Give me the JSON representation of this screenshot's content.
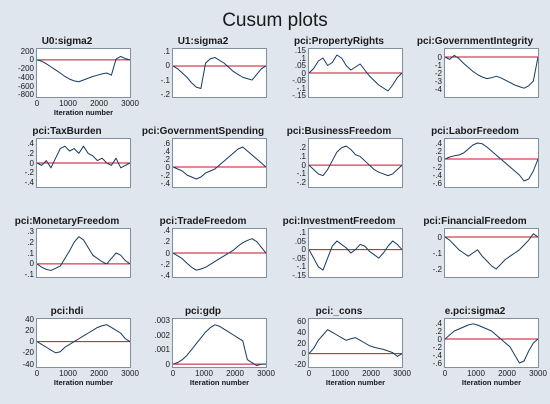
{
  "title": "Cusum plots",
  "colors": {
    "series": "#1a3a5c",
    "zero_line": "#c8102e",
    "background": "#dfe6ee",
    "plot_bg": "#ffffff"
  },
  "chart_data": [
    {
      "type": "line",
      "title": "U0:sigma2",
      "xlabel": "Iteration number",
      "xlim": [
        0,
        3000
      ],
      "ylim": [
        -850,
        250
      ],
      "xticks": [
        0,
        1000,
        2000,
        3000
      ],
      "yticks": [
        200,
        0,
        -200,
        -400,
        -600,
        -800
      ],
      "zero_line": true,
      "x": [
        0,
        150,
        300,
        450,
        600,
        750,
        900,
        1050,
        1200,
        1350,
        1500,
        1650,
        1800,
        1950,
        2100,
        2250,
        2400,
        2550,
        2700,
        2850,
        3000
      ],
      "y": [
        0,
        -30,
        -90,
        -160,
        -230,
        -300,
        -380,
        -440,
        -480,
        -500,
        -460,
        -420,
        -380,
        -350,
        -320,
        -300,
        -350,
        20,
        80,
        30,
        0
      ]
    },
    {
      "type": "line",
      "title": "U1:sigma2",
      "xlabel": "",
      "xlim": [
        0,
        3000
      ],
      "ylim": [
        -0.22,
        0.12
      ],
      "xticks": [],
      "yticks": [
        0.1,
        0,
        -0.1,
        -0.2
      ],
      "zero_line": true,
      "x": [
        0,
        150,
        300,
        450,
        600,
        750,
        900,
        1050,
        1200,
        1350,
        1500,
        1650,
        1800,
        1950,
        2100,
        2250,
        2400,
        2550,
        2700,
        2850,
        3000
      ],
      "y": [
        0,
        -0.02,
        -0.05,
        -0.08,
        -0.12,
        -0.15,
        -0.16,
        0.02,
        0.05,
        0.06,
        0.04,
        0.02,
        -0.01,
        -0.04,
        -0.06,
        -0.08,
        -0.09,
        -0.1,
        -0.06,
        -0.02,
        0
      ]
    },
    {
      "type": "line",
      "title": "pci:PropertyRights",
      "xlabel": "",
      "xlim": [
        0,
        3000
      ],
      "ylim": [
        -0.16,
        0.16
      ],
      "xticks": [],
      "yticks": [
        0.15,
        0.1,
        0.05,
        0,
        -0.05,
        -0.1,
        -0.15
      ],
      "zero_line": true,
      "x": [
        0,
        150,
        300,
        450,
        600,
        750,
        900,
        1050,
        1200,
        1350,
        1500,
        1650,
        1800,
        1950,
        2100,
        2250,
        2400,
        2550,
        2700,
        2850,
        3000
      ],
      "y": [
        0,
        0.03,
        0.08,
        0.1,
        0.05,
        0.07,
        0.12,
        0.1,
        0.05,
        0.02,
        0.04,
        0.06,
        0.02,
        -0.02,
        -0.05,
        -0.08,
        -0.1,
        -0.12,
        -0.08,
        -0.03,
        0
      ]
    },
    {
      "type": "line",
      "title": "pci:GovernmentIntegrity",
      "xlabel": "",
      "xlim": [
        0,
        3000
      ],
      "ylim": [
        -5,
        1
      ],
      "xticks": [],
      "yticks": [
        0,
        -1,
        -2,
        -3,
        -4
      ],
      "zero_line": true,
      "x": [
        0,
        150,
        300,
        450,
        600,
        750,
        900,
        1050,
        1200,
        1350,
        1500,
        1650,
        1800,
        1950,
        2100,
        2250,
        2400,
        2550,
        2700,
        2850,
        3000
      ],
      "y": [
        0,
        -0.3,
        0.2,
        -0.2,
        -0.8,
        -1.3,
        -1.8,
        -2.2,
        -2.5,
        -2.7,
        -2.6,
        -2.4,
        -2.6,
        -2.9,
        -3.2,
        -3.5,
        -3.7,
        -3.9,
        -3.6,
        -3.0,
        0
      ]
    },
    {
      "type": "line",
      "title": "pci:TaxBurden",
      "xlabel": "",
      "xlim": [
        0,
        3000
      ],
      "ylim": [
        -0.5,
        0.5
      ],
      "xticks": [],
      "yticks": [
        0.4,
        0.2,
        0,
        -0.2,
        -0.4
      ],
      "zero_line": true,
      "x": [
        0,
        150,
        300,
        450,
        600,
        750,
        900,
        1050,
        1200,
        1350,
        1500,
        1650,
        1800,
        1950,
        2100,
        2250,
        2400,
        2550,
        2700,
        2850,
        3000
      ],
      "y": [
        0,
        -0.05,
        0.05,
        -0.1,
        0.1,
        0.3,
        0.35,
        0.25,
        0.3,
        0.2,
        0.35,
        0.2,
        0.15,
        0.05,
        0.1,
        0.0,
        -0.05,
        0.1,
        -0.1,
        -0.05,
        0
      ]
    },
    {
      "type": "line",
      "title": "pci:GovernmentSpending",
      "xlabel": "",
      "xlim": [
        0,
        3000
      ],
      "ylim": [
        -0.5,
        0.7
      ],
      "xticks": [],
      "yticks": [
        0.6,
        0.4,
        0.2,
        0,
        -0.2,
        -0.4
      ],
      "zero_line": true,
      "x": [
        0,
        150,
        300,
        450,
        600,
        750,
        900,
        1050,
        1200,
        1350,
        1500,
        1650,
        1800,
        1950,
        2100,
        2250,
        2400,
        2550,
        2700,
        2850,
        3000
      ],
      "y": [
        0,
        -0.05,
        -0.1,
        -0.2,
        -0.25,
        -0.3,
        -0.25,
        -0.15,
        -0.1,
        -0.05,
        0.05,
        0.15,
        0.25,
        0.35,
        0.45,
        0.5,
        0.4,
        0.3,
        0.2,
        0.1,
        0
      ]
    },
    {
      "type": "line",
      "title": "pci:BusinessFreedom",
      "xlabel": "",
      "xlim": [
        0,
        3000
      ],
      "ylim": [
        -0.25,
        0.3
      ],
      "xticks": [],
      "yticks": [
        0.2,
        0.1,
        0,
        -0.1,
        -0.2
      ],
      "zero_line": true,
      "x": [
        0,
        150,
        300,
        450,
        600,
        750,
        900,
        1050,
        1200,
        1350,
        1500,
        1650,
        1800,
        1950,
        2100,
        2250,
        2400,
        2550,
        2700,
        2850,
        3000
      ],
      "y": [
        0,
        -0.05,
        -0.1,
        -0.12,
        -0.05,
        0.05,
        0.15,
        0.2,
        0.22,
        0.18,
        0.12,
        0.1,
        0.05,
        0.0,
        -0.05,
        -0.08,
        -0.1,
        -0.12,
        -0.1,
        -0.05,
        0
      ]
    },
    {
      "type": "line",
      "title": "pci:LaborFreedom",
      "xlabel": "",
      "xlim": [
        0,
        3000
      ],
      "ylim": [
        -0.7,
        0.5
      ],
      "xticks": [],
      "yticks": [
        0.4,
        0.2,
        0,
        -0.2,
        -0.4,
        -0.6
      ],
      "zero_line": true,
      "x": [
        0,
        150,
        300,
        450,
        600,
        750,
        900,
        1050,
        1200,
        1350,
        1500,
        1650,
        1800,
        1950,
        2100,
        2250,
        2400,
        2550,
        2700,
        2850,
        3000
      ],
      "y": [
        0,
        0.05,
        0.08,
        0.1,
        0.15,
        0.25,
        0.35,
        0.4,
        0.38,
        0.3,
        0.2,
        0.1,
        0.0,
        -0.1,
        -0.2,
        -0.3,
        -0.4,
        -0.55,
        -0.5,
        -0.3,
        0
      ]
    },
    {
      "type": "line",
      "title": "pci:MonetaryFreedom",
      "xlabel": "",
      "xlim": [
        0,
        3000
      ],
      "ylim": [
        -0.12,
        0.32
      ],
      "xticks": [],
      "yticks": [
        0.3,
        0.2,
        0.1,
        0,
        -0.1
      ],
      "zero_line": true,
      "x": [
        0,
        150,
        300,
        450,
        600,
        750,
        900,
        1050,
        1200,
        1350,
        1500,
        1650,
        1800,
        1950,
        2100,
        2250,
        2400,
        2550,
        2700,
        2850,
        3000
      ],
      "y": [
        0,
        -0.03,
        -0.05,
        -0.06,
        -0.04,
        -0.02,
        0.05,
        0.12,
        0.2,
        0.25,
        0.22,
        0.15,
        0.08,
        0.05,
        0.02,
        0.0,
        0.05,
        0.1,
        0.08,
        0.03,
        0
      ]
    },
    {
      "type": "line",
      "title": "pci:TradeFreedom",
      "xlabel": "",
      "xlim": [
        0,
        3000
      ],
      "ylim": [
        -0.42,
        0.42
      ],
      "xticks": [],
      "yticks": [
        0.4,
        0.2,
        0,
        -0.2,
        -0.4
      ],
      "zero_line": true,
      "x": [
        0,
        150,
        300,
        450,
        600,
        750,
        900,
        1050,
        1200,
        1350,
        1500,
        1650,
        1800,
        1950,
        2100,
        2250,
        2400,
        2550,
        2700,
        2850,
        3000
      ],
      "y": [
        0,
        -0.05,
        -0.1,
        -0.18,
        -0.25,
        -0.3,
        -0.28,
        -0.25,
        -0.2,
        -0.15,
        -0.1,
        -0.05,
        0.0,
        0.05,
        0.12,
        0.18,
        0.22,
        0.25,
        0.2,
        0.1,
        0
      ]
    },
    {
      "type": "line",
      "title": "pci:InvestmentFreedom",
      "xlabel": "",
      "xlim": [
        0,
        3000
      ],
      "ylim": [
        -0.16,
        0.12
      ],
      "xticks": [],
      "yticks": [
        0.1,
        0.05,
        0,
        -0.05,
        -0.1,
        -0.15
      ],
      "zero_line": true,
      "x": [
        0,
        150,
        300,
        450,
        600,
        750,
        900,
        1050,
        1200,
        1350,
        1500,
        1650,
        1800,
        1950,
        2100,
        2250,
        2400,
        2550,
        2700,
        2850,
        3000
      ],
      "y": [
        0,
        -0.05,
        -0.1,
        -0.12,
        -0.05,
        0.02,
        0.05,
        0.03,
        0.01,
        -0.02,
        0.0,
        0.03,
        0.02,
        -0.01,
        -0.03,
        -0.05,
        -0.02,
        0.02,
        0.05,
        0.03,
        0
      ]
    },
    {
      "type": "line",
      "title": "pci:FinancialFreedom",
      "xlabel": "",
      "xlim": [
        0,
        3000
      ],
      "ylim": [
        -0.25,
        0.05
      ],
      "xticks": [],
      "yticks": [
        0,
        -0.1,
        -0.2
      ],
      "zero_line": true,
      "x": [
        0,
        150,
        300,
        450,
        600,
        750,
        900,
        1050,
        1200,
        1350,
        1500,
        1650,
        1800,
        1950,
        2100,
        2250,
        2400,
        2550,
        2700,
        2850,
        3000
      ],
      "y": [
        0,
        -0.02,
        -0.05,
        -0.08,
        -0.1,
        -0.12,
        -0.1,
        -0.08,
        -0.12,
        -0.15,
        -0.18,
        -0.2,
        -0.17,
        -0.14,
        -0.12,
        -0.1,
        -0.08,
        -0.05,
        -0.02,
        0.02,
        0
      ]
    },
    {
      "type": "line",
      "title": "pci:hdi",
      "xlabel": "Iteration number",
      "xlim": [
        0,
        3000
      ],
      "ylim": [
        -45,
        40
      ],
      "xticks": [
        0,
        1000,
        2000,
        3000
      ],
      "yticks": [
        40,
        20,
        0,
        -20,
        -40
      ],
      "zero_line": true,
      "x": [
        0,
        150,
        300,
        450,
        600,
        750,
        900,
        1050,
        1200,
        1350,
        1500,
        1650,
        1800,
        1950,
        2100,
        2250,
        2400,
        2550,
        2700,
        2850,
        3000
      ],
      "y": [
        0,
        -5,
        -10,
        -15,
        -20,
        -18,
        -10,
        -5,
        0,
        5,
        10,
        15,
        20,
        25,
        28,
        30,
        25,
        20,
        15,
        5,
        0
      ]
    },
    {
      "type": "line",
      "title": "pci:gdp",
      "xlabel": "Iteration number",
      "xlim": [
        0,
        3000
      ],
      "ylim": [
        -0.0002,
        0.0031
      ],
      "xticks": [
        0,
        1000,
        2000,
        3000
      ],
      "yticks": [
        0.003,
        0.002,
        0.001,
        0
      ],
      "zero_line": true,
      "x": [
        0,
        150,
        300,
        450,
        600,
        750,
        900,
        1050,
        1200,
        1350,
        1500,
        1650,
        1800,
        1950,
        2100,
        2250,
        2400,
        2550,
        2700,
        2850,
        3000
      ],
      "y": [
        0,
        0.0001,
        0.0003,
        0.0006,
        0.001,
        0.0014,
        0.0018,
        0.0022,
        0.0025,
        0.0027,
        0.0026,
        0.0024,
        0.0022,
        0.002,
        0.0018,
        0.0016,
        0.0003,
        0.0001,
        -0.0001,
        0.0,
        0
      ]
    },
    {
      "type": "line",
      "title": "pci:_cons",
      "xlabel": "Iteration number",
      "xlim": [
        0,
        3000
      ],
      "ylim": [
        -25,
        65
      ],
      "xticks": [
        0,
        1000,
        2000,
        3000
      ],
      "yticks": [
        60,
        40,
        20,
        0,
        -20
      ],
      "zero_line": true,
      "x": [
        0,
        150,
        300,
        450,
        600,
        750,
        900,
        1050,
        1200,
        1350,
        1500,
        1650,
        1800,
        1950,
        2100,
        2250,
        2400,
        2550,
        2700,
        2850,
        3000
      ],
      "y": [
        0,
        10,
        25,
        35,
        45,
        40,
        35,
        30,
        25,
        28,
        30,
        25,
        20,
        15,
        12,
        10,
        8,
        5,
        2,
        -5,
        0
      ]
    },
    {
      "type": "line",
      "title": "e.pci:sigma2",
      "xlabel": "Iteration number",
      "xlim": [
        0,
        3000
      ],
      "ylim": [
        -0.7,
        0.5
      ],
      "xticks": [
        0,
        1000,
        2000,
        3000
      ],
      "yticks": [
        0.4,
        0.2,
        0,
        -0.2,
        -0.4,
        -0.6
      ],
      "zero_line": true,
      "x": [
        0,
        150,
        300,
        450,
        600,
        750,
        900,
        1050,
        1200,
        1350,
        1500,
        1650,
        1800,
        1950,
        2100,
        2250,
        2400,
        2550,
        2700,
        2850,
        3000
      ],
      "y": [
        0,
        0.1,
        0.2,
        0.25,
        0.3,
        0.35,
        0.38,
        0.35,
        0.3,
        0.25,
        0.2,
        0.1,
        0.0,
        -0.1,
        -0.2,
        -0.4,
        -0.6,
        -0.55,
        -0.3,
        -0.1,
        0
      ]
    }
  ]
}
